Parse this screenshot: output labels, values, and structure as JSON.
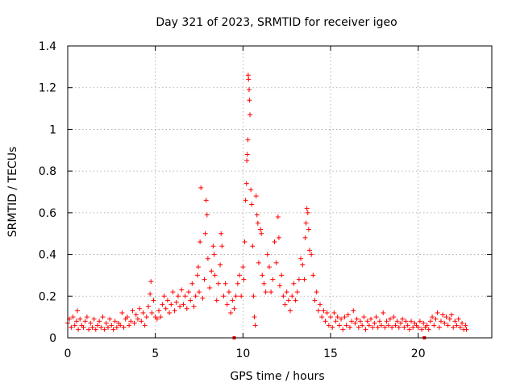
{
  "chart_data": {
    "type": "scatter",
    "title": "Day 321 of 2023, SRMTID for receiver igeo",
    "xlabel": "GPS time / hours",
    "ylabel": "SRMTID / TECUs",
    "xlim": [
      0,
      24.2
    ],
    "ylim": [
      0,
      1.4
    ],
    "x_ticks": [
      0,
      5,
      10,
      15,
      20
    ],
    "x_tick_labels": [
      "0",
      "5",
      "10",
      "15",
      "20"
    ],
    "y_ticks": [
      0,
      0.2,
      0.4,
      0.6,
      0.8,
      1.0,
      1.2,
      1.4
    ],
    "y_tick_labels": [
      "0",
      "0.2",
      "0.4",
      "0.6",
      "0.8",
      "1",
      "1.2",
      "1.4"
    ],
    "grid": true,
    "marker": "+",
    "marker_color": "#ff0000",
    "series": [
      {
        "name": "SRMTID",
        "points": [
          [
            0.0,
            0.07
          ],
          [
            0.1,
            0.09
          ],
          [
            0.2,
            0.05
          ],
          [
            0.3,
            0.1
          ],
          [
            0.4,
            0.06
          ],
          [
            0.5,
            0.08
          ],
          [
            0.55,
            0.13
          ],
          [
            0.6,
            0.04
          ],
          [
            0.7,
            0.09
          ],
          [
            0.8,
            0.06
          ],
          [
            0.9,
            0.05
          ],
          [
            1.0,
            0.08
          ],
          [
            1.1,
            0.1
          ],
          [
            1.2,
            0.04
          ],
          [
            1.3,
            0.07
          ],
          [
            1.4,
            0.05
          ],
          [
            1.5,
            0.09
          ],
          [
            1.6,
            0.04
          ],
          [
            1.7,
            0.06
          ],
          [
            1.8,
            0.08
          ],
          [
            1.9,
            0.05
          ],
          [
            2.0,
            0.1
          ],
          [
            2.1,
            0.04
          ],
          [
            2.2,
            0.07
          ],
          [
            2.3,
            0.05
          ],
          [
            2.4,
            0.09
          ],
          [
            2.5,
            0.06
          ],
          [
            2.6,
            0.04
          ],
          [
            2.7,
            0.08
          ],
          [
            2.8,
            0.05
          ],
          [
            2.9,
            0.07
          ],
          [
            3.0,
            0.06
          ],
          [
            3.1,
            0.12
          ],
          [
            3.2,
            0.05
          ],
          [
            3.3,
            0.09
          ],
          [
            3.4,
            0.1
          ],
          [
            3.5,
            0.06
          ],
          [
            3.6,
            0.08
          ],
          [
            3.7,
            0.13
          ],
          [
            3.8,
            0.07
          ],
          [
            3.9,
            0.11
          ],
          [
            4.0,
            0.09
          ],
          [
            4.1,
            0.14
          ],
          [
            4.2,
            0.08
          ],
          [
            4.3,
            0.12
          ],
          [
            4.4,
            0.06
          ],
          [
            4.5,
            0.1
          ],
          [
            4.6,
            0.15
          ],
          [
            4.7,
            0.21
          ],
          [
            4.75,
            0.27
          ],
          [
            4.8,
            0.12
          ],
          [
            4.9,
            0.18
          ],
          [
            5.0,
            0.1
          ],
          [
            5.1,
            0.09
          ],
          [
            5.2,
            0.13
          ],
          [
            5.3,
            0.1
          ],
          [
            5.4,
            0.16
          ],
          [
            5.5,
            0.2
          ],
          [
            5.6,
            0.14
          ],
          [
            5.7,
            0.18
          ],
          [
            5.8,
            0.12
          ],
          [
            5.9,
            0.16
          ],
          [
            6.0,
            0.22
          ],
          [
            6.1,
            0.13
          ],
          [
            6.2,
            0.17
          ],
          [
            6.3,
            0.2
          ],
          [
            6.4,
            0.15
          ],
          [
            6.5,
            0.23
          ],
          [
            6.6,
            0.16
          ],
          [
            6.7,
            0.2
          ],
          [
            6.8,
            0.14
          ],
          [
            6.9,
            0.22
          ],
          [
            7.0,
            0.18
          ],
          [
            7.1,
            0.26
          ],
          [
            7.2,
            0.15
          ],
          [
            7.3,
            0.2
          ],
          [
            7.4,
            0.3
          ],
          [
            7.45,
            0.34
          ],
          [
            7.5,
            0.22
          ],
          [
            7.55,
            0.46
          ],
          [
            7.6,
            0.72
          ],
          [
            7.7,
            0.19
          ],
          [
            7.8,
            0.28
          ],
          [
            7.85,
            0.5
          ],
          [
            7.9,
            0.66
          ],
          [
            7.95,
            0.59
          ],
          [
            8.0,
            0.38
          ],
          [
            8.1,
            0.24
          ],
          [
            8.2,
            0.32
          ],
          [
            8.3,
            0.44
          ],
          [
            8.35,
            0.4
          ],
          [
            8.4,
            0.3
          ],
          [
            8.5,
            0.18
          ],
          [
            8.6,
            0.26
          ],
          [
            8.7,
            0.35
          ],
          [
            8.75,
            0.5
          ],
          [
            8.8,
            0.44
          ],
          [
            8.9,
            0.2
          ],
          [
            9.0,
            0.26
          ],
          [
            9.1,
            0.16
          ],
          [
            9.2,
            0.22
          ],
          [
            9.3,
            0.12
          ],
          [
            9.4,
            0.18
          ],
          [
            9.5,
            0.14
          ],
          [
            9.6,
            0.2
          ],
          [
            9.7,
            0.26
          ],
          [
            9.8,
            0.3
          ],
          [
            9.9,
            0.2
          ],
          [
            10.0,
            0.34
          ],
          [
            10.05,
            0.28
          ],
          [
            10.1,
            0.46
          ],
          [
            10.15,
            0.66
          ],
          [
            10.2,
            0.74
          ],
          [
            10.22,
            0.85
          ],
          [
            10.25,
            0.88
          ],
          [
            10.28,
            0.95
          ],
          [
            10.3,
            1.26
          ],
          [
            10.32,
            1.24
          ],
          [
            10.35,
            1.19
          ],
          [
            10.37,
            1.14
          ],
          [
            10.4,
            1.07
          ],
          [
            10.45,
            0.71
          ],
          [
            10.5,
            0.64
          ],
          [
            10.55,
            0.44
          ],
          [
            10.6,
            0.2
          ],
          [
            10.65,
            0.1
          ],
          [
            10.7,
            0.06
          ],
          [
            10.75,
            0.68
          ],
          [
            10.8,
            0.59
          ],
          [
            10.85,
            0.55
          ],
          [
            10.9,
            0.36
          ],
          [
            11.0,
            0.52
          ],
          [
            11.05,
            0.5
          ],
          [
            11.1,
            0.3
          ],
          [
            11.2,
            0.26
          ],
          [
            11.3,
            0.22
          ],
          [
            11.4,
            0.4
          ],
          [
            11.5,
            0.34
          ],
          [
            11.6,
            0.22
          ],
          [
            11.7,
            0.28
          ],
          [
            11.8,
            0.46
          ],
          [
            11.9,
            0.36
          ],
          [
            12.0,
            0.58
          ],
          [
            12.05,
            0.48
          ],
          [
            12.1,
            0.25
          ],
          [
            12.2,
            0.3
          ],
          [
            12.3,
            0.2
          ],
          [
            12.4,
            0.16
          ],
          [
            12.5,
            0.22
          ],
          [
            12.6,
            0.18
          ],
          [
            12.7,
            0.13
          ],
          [
            12.8,
            0.2
          ],
          [
            12.9,
            0.26
          ],
          [
            13.0,
            0.18
          ],
          [
            13.1,
            0.22
          ],
          [
            13.2,
            0.28
          ],
          [
            13.3,
            0.38
          ],
          [
            13.4,
            0.35
          ],
          [
            13.5,
            0.28
          ],
          [
            13.55,
            0.48
          ],
          [
            13.6,
            0.55
          ],
          [
            13.65,
            0.62
          ],
          [
            13.7,
            0.6
          ],
          [
            13.75,
            0.52
          ],
          [
            13.8,
            0.42
          ],
          [
            13.9,
            0.4
          ],
          [
            14.0,
            0.3
          ],
          [
            14.1,
            0.18
          ],
          [
            14.2,
            0.22
          ],
          [
            14.3,
            0.13
          ],
          [
            14.4,
            0.16
          ],
          [
            14.5,
            0.1
          ],
          [
            14.6,
            0.13
          ],
          [
            14.7,
            0.08
          ],
          [
            14.8,
            0.12
          ],
          [
            14.9,
            0.06
          ],
          [
            15.0,
            0.1
          ],
          [
            15.1,
            0.05
          ],
          [
            15.2,
            0.12
          ],
          [
            15.3,
            0.08
          ],
          [
            15.4,
            0.1
          ],
          [
            15.5,
            0.06
          ],
          [
            15.6,
            0.09
          ],
          [
            15.7,
            0.04
          ],
          [
            15.8,
            0.1
          ],
          [
            15.9,
            0.06
          ],
          [
            16.0,
            0.11
          ],
          [
            16.1,
            0.05
          ],
          [
            16.2,
            0.08
          ],
          [
            16.3,
            0.13
          ],
          [
            16.4,
            0.07
          ],
          [
            16.5,
            0.09
          ],
          [
            16.6,
            0.05
          ],
          [
            16.7,
            0.08
          ],
          [
            16.8,
            0.06
          ],
          [
            16.9,
            0.1
          ],
          [
            17.0,
            0.04
          ],
          [
            17.1,
            0.08
          ],
          [
            17.2,
            0.06
          ],
          [
            17.3,
            0.09
          ],
          [
            17.4,
            0.05
          ],
          [
            17.5,
            0.07
          ],
          [
            17.6,
            0.1
          ],
          [
            17.7,
            0.05
          ],
          [
            17.8,
            0.08
          ],
          [
            17.9,
            0.06
          ],
          [
            18.0,
            0.12
          ],
          [
            18.1,
            0.05
          ],
          [
            18.2,
            0.08
          ],
          [
            18.3,
            0.06
          ],
          [
            18.4,
            0.09
          ],
          [
            18.5,
            0.05
          ],
          [
            18.6,
            0.1
          ],
          [
            18.7,
            0.06
          ],
          [
            18.8,
            0.08
          ],
          [
            18.9,
            0.05
          ],
          [
            19.0,
            0.07
          ],
          [
            19.1,
            0.09
          ],
          [
            19.2,
            0.05
          ],
          [
            19.3,
            0.08
          ],
          [
            19.4,
            0.06
          ],
          [
            19.5,
            0.04
          ],
          [
            19.6,
            0.08
          ],
          [
            19.7,
            0.05
          ],
          [
            19.8,
            0.07
          ],
          [
            19.9,
            0.06
          ],
          [
            20.0,
            0.05
          ],
          [
            20.1,
            0.08
          ],
          [
            20.2,
            0.04
          ],
          [
            20.3,
            0.07
          ],
          [
            20.4,
            0.05
          ],
          [
            20.5,
            0.06
          ],
          [
            20.6,
            0.04
          ],
          [
            20.7,
            0.08
          ],
          [
            20.8,
            0.1
          ],
          [
            20.9,
            0.06
          ],
          [
            21.0,
            0.09
          ],
          [
            21.1,
            0.12
          ],
          [
            21.2,
            0.05
          ],
          [
            21.3,
            0.08
          ],
          [
            21.4,
            0.11
          ],
          [
            21.5,
            0.07
          ],
          [
            21.6,
            0.1
          ],
          [
            21.7,
            0.06
          ],
          [
            21.8,
            0.09
          ],
          [
            21.9,
            0.11
          ],
          [
            22.0,
            0.05
          ],
          [
            22.1,
            0.08
          ],
          [
            22.2,
            0.06
          ],
          [
            22.3,
            0.09
          ],
          [
            22.4,
            0.05
          ],
          [
            22.5,
            0.07
          ],
          [
            22.6,
            0.04
          ],
          [
            22.7,
            0.06
          ],
          [
            22.75,
            0.04
          ]
        ]
      }
    ],
    "gap_markers": [
      9.5,
      20.35
    ]
  }
}
